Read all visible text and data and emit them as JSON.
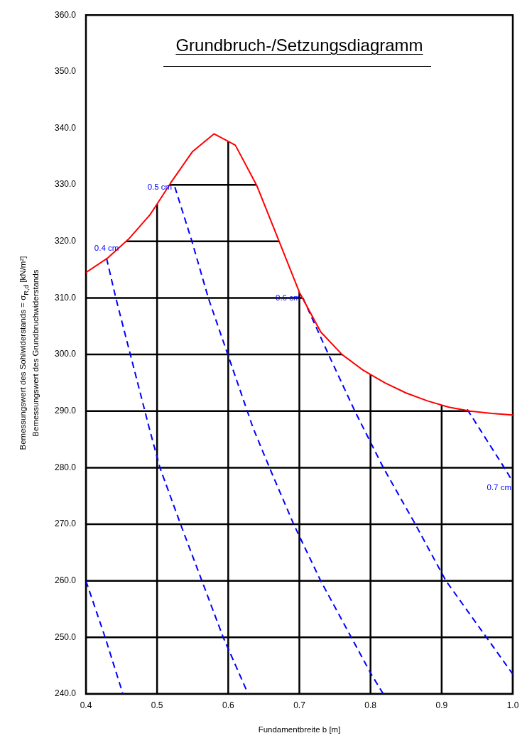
{
  "chart_data": {
    "type": "line",
    "title": "Grundbruch-/Setzungsdiagramm",
    "xlabel": "Fundamentbreite b [m]",
    "ylabel": "Bemessungswert des Sohlwiderstands = σ$_{R,d}$ [kN/m²]\nBemessungswert des Grundbruchwiderstands",
    "xlim": [
      0.4,
      1.0
    ],
    "xticks": [
      0.4,
      0.5,
      0.6,
      0.7,
      0.8,
      0.9,
      {
        "value": 1.0,
        "label": "1.0"
      }
    ],
    "ylim": [
      240,
      360
    ],
    "yticks": [
      {
        "value": 240,
        "label": "240.0"
      },
      {
        "value": 250,
        "label": "250.0"
      },
      {
        "value": 260,
        "label": "260.0"
      },
      {
        "value": 270,
        "label": "270.0"
      },
      {
        "value": 280,
        "label": "280.0"
      },
      {
        "value": 290,
        "label": "290.0"
      },
      {
        "value": 300,
        "label": "300.0"
      },
      {
        "value": 310,
        "label": "310.0"
      },
      {
        "value": 320,
        "label": "320.0"
      },
      {
        "value": 330,
        "label": "330.0"
      },
      {
        "value": 340,
        "label": "340.0"
      },
      {
        "value": 350,
        "label": "350.0"
      },
      {
        "value": 360,
        "label": "360.0"
      }
    ],
    "grid": true,
    "legend": false,
    "marker": "none",
    "series": [
      {
        "color": "#ff0000",
        "line_style": "solid",
        "x": [
          0.4,
          0.43,
          0.46,
          0.49,
          0.5,
          0.52,
          0.55,
          0.58,
          0.61,
          0.64,
          0.67,
          0.7,
          0.73,
          0.76,
          0.79,
          0.82,
          0.85,
          0.88,
          0.91,
          0.94,
          0.97,
          1.0
        ],
        "values": [
          314.5,
          317.0,
          320.4,
          324.7,
          326.6,
          330.5,
          335.9,
          339.0,
          337.0,
          329.9,
          320.5,
          311.0,
          304.0,
          300.0,
          297.2,
          295.0,
          293.2,
          291.8,
          290.7,
          290.0,
          289.6,
          289.3
        ]
      },
      {
        "color": "#0000ff",
        "line_style": "dashed",
        "x": [
          0.4,
          0.427,
          0.452
        ],
        "values": [
          260.0,
          250.0,
          240.0
        ]
      },
      {
        "name": "0.4 cm",
        "color": "#0000ff",
        "line_style": "dashed",
        "x": [
          0.429,
          0.442,
          0.489,
          0.504,
          0.533,
          0.563,
          0.593,
          0.628
        ],
        "values": [
          317.0,
          310.0,
          287.0,
          280.0,
          270.0,
          260.0,
          250.0,
          240.0
        ]
      },
      {
        "name": "0.5 cm",
        "color": "#0000ff",
        "line_style": "dashed",
        "x": [
          0.525,
          0.549,
          0.572,
          0.635,
          0.658,
          0.692,
          0.73,
          0.773,
          0.801,
          0.818
        ],
        "values": [
          329.6,
          320.0,
          310.0,
          287.0,
          280.0,
          270.0,
          260.0,
          250.0,
          243.5,
          240.0
        ]
      },
      {
        "name": "0.6 cm",
        "color": "#0000ff",
        "line_style": "dashed",
        "x": [
          0.705,
          0.741,
          0.778,
          0.818,
          0.863,
          0.906,
          0.963,
          1.0
        ],
        "values": [
          310.0,
          300.0,
          290.0,
          280.0,
          270.0,
          260.0,
          250.0,
          243.5
        ]
      },
      {
        "name": "0.7 cm",
        "color": "#0000ff",
        "line_style": "dashed",
        "x": [
          0.936,
          0.988,
          1.0
        ],
        "values": [
          290.3,
          280.0,
          277.5
        ]
      }
    ]
  }
}
